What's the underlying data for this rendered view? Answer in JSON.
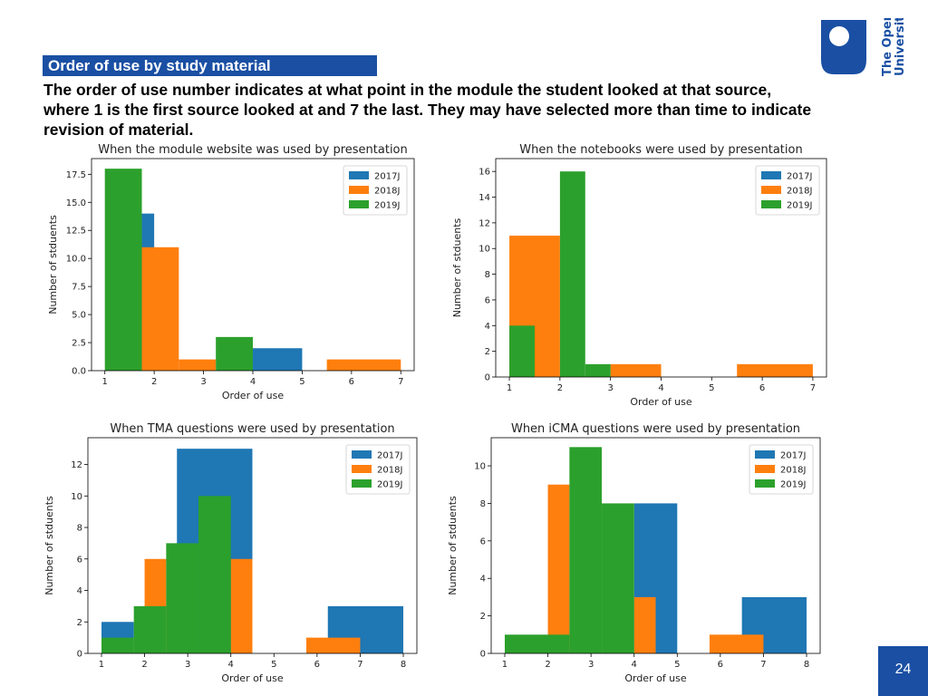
{
  "header": {
    "section_title": "Order of use by study material",
    "intro_text": "The order of use number indicates at what point in the module the student looked at that source, where 1 is the first source looked at and 7 the last. They may have selected more than time to indicate revision of material."
  },
  "logo": {
    "line1": "The Open",
    "line2": "University"
  },
  "footer": {
    "page_number": "24"
  },
  "colors": {
    "brand_blue": "#1a4fa3",
    "s2017": "#1f77b4",
    "s2018": "#ff7f0e",
    "s2019": "#2ca02c"
  },
  "chart_data": [
    {
      "type": "bar",
      "title": "When the module website was used by presentation",
      "xlabel": "Order of use",
      "ylabel": "Number of stduents",
      "xlim": [
        1,
        7
      ],
      "ylim": [
        0,
        18.9
      ],
      "xticks": [
        "1",
        "2",
        "3",
        "4",
        "5",
        "6",
        "7"
      ],
      "yticks": [
        0,
        2.5,
        5.0,
        7.5,
        10.0,
        12.5,
        15.0,
        17.5
      ],
      "ytick_labels": [
        "0.0",
        "2.5",
        "5.0",
        "7.5",
        "10.0",
        "12.5",
        "15.0",
        "17.5"
      ],
      "legend": "top-right",
      "series": [
        {
          "name": "2017J",
          "color": "#1f77b4",
          "bins": [
            [
              1.75,
              2.0,
              14
            ],
            [
              4.0,
              5.0,
              2
            ]
          ]
        },
        {
          "name": "2018J",
          "color": "#ff7f0e",
          "bins": [
            [
              1.75,
              2.5,
              11
            ],
            [
              2.5,
              3.25,
              1
            ],
            [
              5.5,
              7.0,
              1
            ]
          ]
        },
        {
          "name": "2019J",
          "color": "#2ca02c",
          "bins": [
            [
              1.0,
              1.75,
              18
            ],
            [
              3.25,
              4.0,
              3
            ]
          ]
        }
      ]
    },
    {
      "type": "bar",
      "title": "When the notebooks were used by presentation",
      "xlabel": "Order of use",
      "ylabel": "Number of stduents",
      "xlim": [
        1,
        7
      ],
      "ylim": [
        0,
        17
      ],
      "xticks": [
        "1",
        "2",
        "3",
        "4",
        "5",
        "6",
        "7"
      ],
      "yticks": [
        0,
        2,
        4,
        6,
        8,
        10,
        12,
        14,
        16
      ],
      "ytick_labels": [
        "0",
        "2",
        "4",
        "6",
        "8",
        "10",
        "12",
        "14",
        "16"
      ],
      "legend": "top-right",
      "series": [
        {
          "name": "2017J",
          "color": "#1f77b4",
          "bins": []
        },
        {
          "name": "2018J",
          "color": "#ff7f0e",
          "bins": [
            [
              1.0,
              2.0,
              11
            ],
            [
              3.0,
              4.0,
              1
            ],
            [
              5.5,
              7.0,
              1
            ]
          ]
        },
        {
          "name": "2019J",
          "color": "#2ca02c",
          "bins": [
            [
              1.0,
              1.5,
              4
            ],
            [
              2.0,
              2.5,
              16
            ],
            [
              2.5,
              3.0,
              1
            ]
          ]
        }
      ]
    },
    {
      "type": "bar",
      "title": "When TMA questions were used by presentation",
      "xlabel": "Order of use",
      "ylabel": "Number of stduents",
      "xlim": [
        1,
        8
      ],
      "ylim": [
        0,
        13.7
      ],
      "xticks": [
        "1",
        "2",
        "3",
        "4",
        "5",
        "6",
        "7",
        "8"
      ],
      "yticks": [
        0,
        2,
        4,
        6,
        8,
        10,
        12
      ],
      "ytick_labels": [
        "0",
        "2",
        "4",
        "6",
        "8",
        "10",
        "12"
      ],
      "legend": "top-right",
      "series": [
        {
          "name": "2017J",
          "color": "#1f77b4",
          "bins": [
            [
              1.0,
              1.75,
              2
            ],
            [
              2.75,
              4.5,
              13
            ],
            [
              6.25,
              8.0,
              3
            ]
          ]
        },
        {
          "name": "2018J",
          "color": "#ff7f0e",
          "bins": [
            [
              2.0,
              2.5,
              6
            ],
            [
              4.0,
              4.5,
              6
            ],
            [
              5.75,
              7.0,
              1
            ]
          ]
        },
        {
          "name": "2019J",
          "color": "#2ca02c",
          "bins": [
            [
              1.0,
              1.75,
              1
            ],
            [
              1.75,
              2.5,
              3
            ],
            [
              2.5,
              3.25,
              7
            ],
            [
              3.25,
              4.0,
              10
            ]
          ]
        }
      ]
    },
    {
      "type": "bar",
      "title": "When iCMA questions were used by presentation",
      "xlabel": "Order of use",
      "ylabel": "Number of stduents",
      "xlim": [
        1,
        8
      ],
      "ylim": [
        0,
        11.5
      ],
      "xticks": [
        "1",
        "2",
        "3",
        "4",
        "5",
        "6",
        "7",
        "8"
      ],
      "yticks": [
        0,
        2,
        4,
        6,
        8,
        10
      ],
      "ytick_labels": [
        "0",
        "2",
        "4",
        "6",
        "8",
        "10"
      ],
      "legend": "top-right",
      "series": [
        {
          "name": "2017J",
          "color": "#1f77b4",
          "bins": [
            [
              4.0,
              5.0,
              8
            ],
            [
              6.5,
              8.0,
              3
            ]
          ]
        },
        {
          "name": "2018J",
          "color": "#ff7f0e",
          "bins": [
            [
              2.0,
              2.5,
              9
            ],
            [
              4.0,
              4.5,
              3
            ],
            [
              5.75,
              7.0,
              1
            ]
          ]
        },
        {
          "name": "2019J",
          "color": "#2ca02c",
          "bins": [
            [
              1.0,
              2.5,
              1
            ],
            [
              2.5,
              3.25,
              11
            ],
            [
              3.25,
              4.0,
              8
            ]
          ]
        }
      ]
    }
  ]
}
